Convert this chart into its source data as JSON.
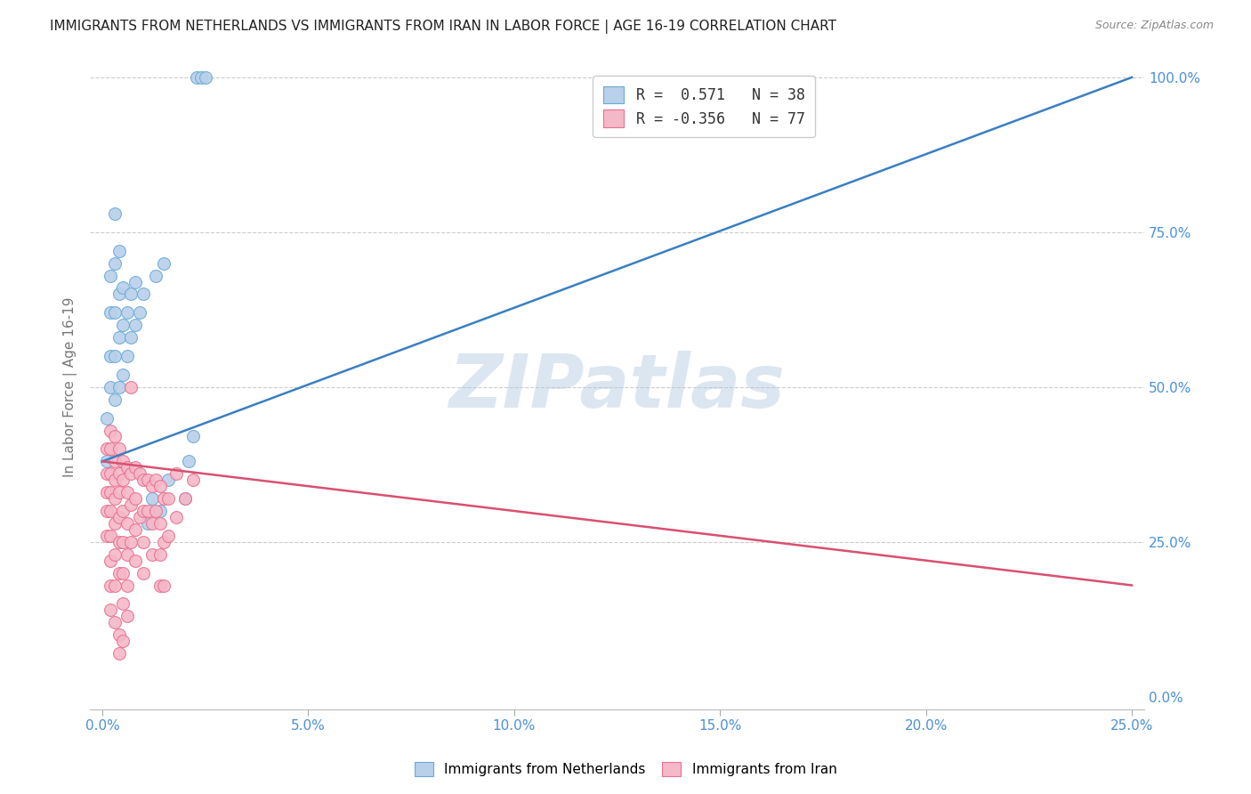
{
  "title": "IMMIGRANTS FROM NETHERLANDS VS IMMIGRANTS FROM IRAN IN LABOR FORCE | AGE 16-19 CORRELATION CHART",
  "source": "Source: ZipAtlas.com",
  "ylabel": "In Labor Force | Age 16-19",
  "r_blue": 0.571,
  "n_blue": 38,
  "r_pink": -0.356,
  "n_pink": 77,
  "legend_label_blue": "Immigrants from Netherlands",
  "legend_label_pink": "Immigrants from Iran",
  "blue_fill": "#b8d0ea",
  "pink_fill": "#f5b8c8",
  "blue_edge": "#6aaad4",
  "pink_edge": "#e87090",
  "blue_line": "#3a7fc1",
  "pink_line": "#d95070",
  "watermark": "ZIPatlas",
  "blue_scatter": [
    [
      0.001,
      0.38
    ],
    [
      0.001,
      0.45
    ],
    [
      0.002,
      0.5
    ],
    [
      0.002,
      0.55
    ],
    [
      0.002,
      0.62
    ],
    [
      0.002,
      0.68
    ],
    [
      0.003,
      0.48
    ],
    [
      0.003,
      0.55
    ],
    [
      0.003,
      0.62
    ],
    [
      0.003,
      0.7
    ],
    [
      0.003,
      0.78
    ],
    [
      0.004,
      0.5
    ],
    [
      0.004,
      0.58
    ],
    [
      0.004,
      0.65
    ],
    [
      0.004,
      0.72
    ],
    [
      0.005,
      0.52
    ],
    [
      0.005,
      0.6
    ],
    [
      0.005,
      0.66
    ],
    [
      0.006,
      0.55
    ],
    [
      0.006,
      0.62
    ],
    [
      0.007,
      0.58
    ],
    [
      0.007,
      0.65
    ],
    [
      0.008,
      0.6
    ],
    [
      0.008,
      0.67
    ],
    [
      0.009,
      0.62
    ],
    [
      0.01,
      0.65
    ],
    [
      0.011,
      0.28
    ],
    [
      0.012,
      0.32
    ],
    [
      0.013,
      0.68
    ],
    [
      0.014,
      0.3
    ],
    [
      0.015,
      0.7
    ],
    [
      0.016,
      0.35
    ],
    [
      0.02,
      0.32
    ],
    [
      0.021,
      0.38
    ],
    [
      0.022,
      0.42
    ],
    [
      0.023,
      1.0
    ],
    [
      0.024,
      1.0
    ],
    [
      0.025,
      1.0
    ]
  ],
  "pink_scatter": [
    [
      0.001,
      0.4
    ],
    [
      0.001,
      0.36
    ],
    [
      0.001,
      0.33
    ],
    [
      0.001,
      0.3
    ],
    [
      0.001,
      0.26
    ],
    [
      0.002,
      0.43
    ],
    [
      0.002,
      0.4
    ],
    [
      0.002,
      0.36
    ],
    [
      0.002,
      0.33
    ],
    [
      0.002,
      0.3
    ],
    [
      0.002,
      0.26
    ],
    [
      0.002,
      0.22
    ],
    [
      0.002,
      0.18
    ],
    [
      0.002,
      0.14
    ],
    [
      0.003,
      0.42
    ],
    [
      0.003,
      0.38
    ],
    [
      0.003,
      0.35
    ],
    [
      0.003,
      0.32
    ],
    [
      0.003,
      0.28
    ],
    [
      0.003,
      0.23
    ],
    [
      0.003,
      0.18
    ],
    [
      0.003,
      0.12
    ],
    [
      0.004,
      0.4
    ],
    [
      0.004,
      0.36
    ],
    [
      0.004,
      0.33
    ],
    [
      0.004,
      0.29
    ],
    [
      0.004,
      0.25
    ],
    [
      0.004,
      0.2
    ],
    [
      0.004,
      0.1
    ],
    [
      0.004,
      0.07
    ],
    [
      0.005,
      0.38
    ],
    [
      0.005,
      0.35
    ],
    [
      0.005,
      0.3
    ],
    [
      0.005,
      0.25
    ],
    [
      0.005,
      0.2
    ],
    [
      0.005,
      0.15
    ],
    [
      0.005,
      0.09
    ],
    [
      0.006,
      0.37
    ],
    [
      0.006,
      0.33
    ],
    [
      0.006,
      0.28
    ],
    [
      0.006,
      0.23
    ],
    [
      0.006,
      0.18
    ],
    [
      0.006,
      0.13
    ],
    [
      0.007,
      0.5
    ],
    [
      0.007,
      0.36
    ],
    [
      0.007,
      0.31
    ],
    [
      0.007,
      0.25
    ],
    [
      0.008,
      0.37
    ],
    [
      0.008,
      0.32
    ],
    [
      0.008,
      0.27
    ],
    [
      0.008,
      0.22
    ],
    [
      0.009,
      0.36
    ],
    [
      0.009,
      0.29
    ],
    [
      0.01,
      0.35
    ],
    [
      0.01,
      0.3
    ],
    [
      0.01,
      0.25
    ],
    [
      0.01,
      0.2
    ],
    [
      0.011,
      0.35
    ],
    [
      0.011,
      0.3
    ],
    [
      0.012,
      0.34
    ],
    [
      0.012,
      0.28
    ],
    [
      0.012,
      0.23
    ],
    [
      0.013,
      0.35
    ],
    [
      0.013,
      0.3
    ],
    [
      0.014,
      0.34
    ],
    [
      0.014,
      0.28
    ],
    [
      0.014,
      0.23
    ],
    [
      0.014,
      0.18
    ],
    [
      0.015,
      0.32
    ],
    [
      0.015,
      0.25
    ],
    [
      0.015,
      0.18
    ],
    [
      0.016,
      0.32
    ],
    [
      0.016,
      0.26
    ],
    [
      0.018,
      0.36
    ],
    [
      0.018,
      0.29
    ],
    [
      0.02,
      0.32
    ],
    [
      0.022,
      0.35
    ]
  ],
  "xlim_lo": 0.0,
  "xlim_hi": 0.25,
  "ylim_lo": 0.0,
  "ylim_hi": 1.0,
  "xtick_vals": [
    0.0,
    0.05,
    0.1,
    0.15,
    0.2,
    0.25
  ],
  "ytick_vals": [
    0.0,
    0.25,
    0.5,
    0.75,
    1.0
  ],
  "background_color": "#ffffff",
  "grid_color": "#cccccc",
  "tick_color": "#4a90d9",
  "axis_label_color": "#777777"
}
